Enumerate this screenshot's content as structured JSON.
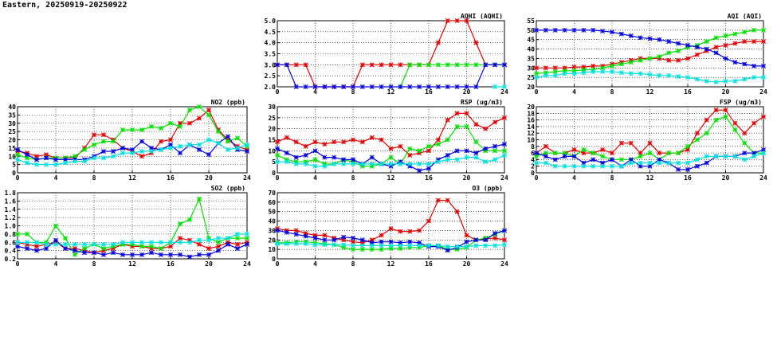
{
  "page": {
    "title": "Eastern, 20250919-20250922"
  },
  "colors": {
    "red": "#e00000",
    "green": "#00e000",
    "blue": "#0000e0",
    "cyan": "#00e0e0"
  },
  "chart_data": [
    {
      "id": "aqhi",
      "type": "line",
      "title": "AQHI (AQHI)",
      "x": [
        0,
        1,
        2,
        3,
        4,
        5,
        6,
        7,
        8,
        9,
        10,
        11,
        12,
        13,
        14,
        15,
        16,
        17,
        18,
        19,
        20,
        21,
        22,
        23,
        24
      ],
      "xlim": [
        0,
        24
      ],
      "xticks": [
        0,
        4,
        8,
        12,
        16,
        20,
        24
      ],
      "ylim": [
        2.0,
        5.0
      ],
      "yticks": [
        "2.0",
        "2.5",
        "3.0",
        "3.5",
        "4.0",
        "4.5",
        "5.0"
      ],
      "grid": true,
      "series": [
        {
          "color": "red",
          "values": [
            3,
            3,
            3,
            3,
            2,
            2,
            2,
            2,
            2,
            3,
            3,
            3,
            3,
            3,
            3,
            3,
            3,
            4,
            5,
            5,
            5,
            4,
            3,
            3,
            3
          ]
        },
        {
          "color": "green",
          "values": [
            null,
            null,
            null,
            null,
            null,
            null,
            null,
            null,
            null,
            null,
            null,
            null,
            null,
            2,
            3,
            3,
            3,
            3,
            3,
            3,
            3,
            3,
            3,
            3,
            3
          ]
        },
        {
          "color": "blue",
          "values": [
            3,
            3,
            2,
            2,
            2,
            2,
            2,
            2,
            2,
            2,
            2,
            2,
            2,
            2,
            2,
            2,
            2,
            2,
            2,
            2,
            2,
            2,
            3,
            3,
            3
          ]
        },
        {
          "color": "cyan",
          "values": [
            null,
            null,
            null,
            null,
            null,
            null,
            null,
            null,
            null,
            null,
            null,
            null,
            null,
            null,
            null,
            null,
            null,
            null,
            null,
            null,
            null,
            null,
            null,
            2,
            2
          ]
        }
      ]
    },
    {
      "id": "aqi",
      "type": "line",
      "title": "AQI (AQI)",
      "x": [
        0,
        1,
        2,
        3,
        4,
        5,
        6,
        7,
        8,
        9,
        10,
        11,
        12,
        13,
        14,
        15,
        16,
        17,
        18,
        19,
        20,
        21,
        22,
        23,
        24
      ],
      "xlim": [
        0,
        24
      ],
      "xticks": [
        0,
        4,
        8,
        12,
        16,
        20,
        24
      ],
      "ylim": [
        20,
        55
      ],
      "yticks": [
        "20",
        "25",
        "30",
        "35",
        "40",
        "45",
        "50",
        "55"
      ],
      "grid": true,
      "series": [
        {
          "color": "red",
          "values": [
            30,
            30,
            30,
            30,
            30.5,
            30.5,
            31,
            31,
            32,
            33,
            34,
            35,
            35,
            35,
            34,
            34,
            35,
            37,
            39,
            41,
            42,
            43,
            44,
            44,
            44
          ]
        },
        {
          "color": "green",
          "values": [
            27,
            27.5,
            28,
            28.5,
            28.5,
            29,
            29,
            30,
            31,
            32,
            33,
            34,
            35,
            36,
            38,
            39,
            41,
            42,
            44,
            46,
            47,
            48,
            49,
            50,
            50
          ]
        },
        {
          "color": "blue",
          "values": [
            50,
            50,
            50,
            50,
            50,
            50,
            50,
            49.5,
            49,
            48,
            47,
            46,
            45.5,
            45,
            44,
            43,
            42,
            41,
            40,
            38,
            35,
            33,
            32,
            31,
            31
          ]
        },
        {
          "color": "cyan",
          "values": [
            25,
            26,
            26,
            27,
            27,
            27.5,
            28,
            28,
            28,
            27.5,
            27,
            27,
            26.5,
            26,
            26,
            25.5,
            25,
            24,
            23,
            22.5,
            23,
            23,
            24,
            25,
            25
          ]
        }
      ]
    },
    {
      "id": "no2",
      "type": "line",
      "title": "NO2 (ppb)",
      "x": [
        0,
        1,
        2,
        3,
        4,
        5,
        6,
        7,
        8,
        9,
        10,
        11,
        12,
        13,
        14,
        15,
        16,
        17,
        18,
        19,
        20,
        21,
        22,
        23,
        24
      ],
      "xlim": [
        0,
        24
      ],
      "xticks": [
        0,
        4,
        8,
        12,
        16,
        20,
        24
      ],
      "ylim": [
        0,
        40
      ],
      "yticks": [
        "0",
        "5",
        "10",
        "15",
        "20",
        "25",
        "30",
        "35",
        "40"
      ],
      "grid": true,
      "series": [
        {
          "color": "red",
          "values": [
            13,
            12,
            10,
            11,
            9,
            9,
            9,
            15,
            23,
            23,
            20,
            15,
            13,
            10,
            12,
            19,
            20,
            30,
            30,
            33,
            38,
            26,
            20,
            16,
            14
          ]
        },
        {
          "color": "green",
          "values": [
            11,
            9,
            8,
            9,
            9,
            9,
            10,
            14,
            17,
            19,
            19,
            26,
            26,
            26,
            28,
            27,
            30,
            28,
            38,
            40,
            35,
            25,
            19,
            21,
            16
          ]
        },
        {
          "color": "blue",
          "values": [
            14,
            11,
            8,
            9,
            8,
            8,
            8,
            8,
            10,
            13,
            13,
            15,
            14,
            19,
            15,
            14,
            17,
            12,
            17,
            14,
            11,
            18,
            22,
            14,
            13
          ]
        },
        {
          "color": "cyan",
          "values": [
            8,
            6,
            5,
            5,
            5,
            6,
            7,
            7,
            9,
            9,
            10,
            12,
            12,
            13,
            13,
            14,
            15,
            16,
            17,
            17,
            20,
            18,
            14,
            15,
            17
          ]
        }
      ]
    },
    {
      "id": "rsp",
      "type": "line",
      "title": "RSP (ug/m3)",
      "x": [
        0,
        1,
        2,
        3,
        4,
        5,
        6,
        7,
        8,
        9,
        10,
        11,
        12,
        13,
        14,
        15,
        16,
        17,
        18,
        19,
        20,
        21,
        22,
        23,
        24
      ],
      "xlim": [
        0,
        24
      ],
      "xticks": [
        0,
        4,
        8,
        12,
        16,
        20,
        24
      ],
      "ylim": [
        0,
        30
      ],
      "yticks": [
        "0",
        "5",
        "10",
        "15",
        "20",
        "25",
        "30"
      ],
      "grid": true,
      "series": [
        {
          "color": "red",
          "values": [
            14,
            16,
            14,
            12,
            14,
            13,
            14,
            14,
            15,
            14,
            16,
            15,
            11,
            12,
            8,
            9,
            10,
            15,
            24,
            27,
            27,
            22,
            20,
            23,
            25
          ]
        },
        {
          "color": "green",
          "values": [
            8,
            6,
            5,
            5,
            6,
            4,
            4,
            6,
            5,
            3,
            3,
            4,
            7,
            4,
            11,
            10,
            12,
            13,
            15,
            21,
            21,
            14,
            10,
            10,
            10
          ]
        },
        {
          "color": "blue",
          "values": [
            11,
            9,
            7,
            8,
            10,
            7,
            7,
            6,
            6,
            4,
            7,
            4,
            3,
            5,
            3,
            1,
            2,
            6,
            8,
            10,
            10,
            9,
            11,
            12,
            13
          ]
        },
        {
          "color": "cyan",
          "values": [
            5,
            5,
            4,
            4,
            3,
            3,
            4,
            4,
            4,
            4,
            4,
            4,
            4,
            4,
            4,
            4,
            4,
            5,
            6,
            6,
            7,
            7,
            5,
            6,
            8
          ]
        }
      ]
    },
    {
      "id": "fsp",
      "type": "line",
      "title": "FSP (ug/m3)",
      "x": [
        0,
        1,
        2,
        3,
        4,
        5,
        6,
        7,
        8,
        9,
        10,
        11,
        12,
        13,
        14,
        15,
        16,
        17,
        18,
        19,
        20,
        21,
        22,
        23,
        24
      ],
      "xlim": [
        0,
        24
      ],
      "xticks": [
        0,
        4,
        8,
        12,
        16,
        20,
        24
      ],
      "ylim": [
        0,
        20
      ],
      "yticks": [
        "0",
        "2",
        "4",
        "6",
        "8",
        "10",
        "12",
        "14",
        "16",
        "18",
        "20"
      ],
      "grid": true,
      "series": [
        {
          "color": "red",
          "values": [
            6,
            8,
            6,
            6,
            7,
            6,
            6,
            7,
            6,
            9,
            9,
            6,
            9,
            6,
            6,
            6,
            7,
            12,
            16,
            19,
            19,
            15,
            12,
            15,
            17
          ]
        },
        {
          "color": "green",
          "values": [
            5,
            6,
            6,
            6,
            5,
            7,
            6,
            5,
            4,
            4,
            4,
            5,
            6,
            4,
            6,
            6,
            8,
            10,
            12,
            16,
            17,
            13,
            9,
            6,
            6
          ]
        },
        {
          "color": "blue",
          "values": [
            6,
            5,
            4,
            5,
            5,
            3,
            4,
            3,
            4,
            2,
            4,
            2,
            2,
            4,
            3,
            1,
            1,
            2,
            3,
            5,
            5,
            5,
            6,
            6,
            7
          ]
        },
        {
          "color": "cyan",
          "values": [
            3,
            3,
            2,
            2,
            2,
            2,
            2,
            2,
            2,
            2,
            3,
            3,
            3,
            3,
            3,
            3,
            3,
            4,
            5,
            5,
            5,
            5,
            4,
            5,
            6
          ]
        }
      ]
    },
    {
      "id": "so2",
      "type": "line",
      "title": "SO2 (ppb)",
      "x": [
        0,
        1,
        2,
        3,
        4,
        5,
        6,
        7,
        8,
        9,
        10,
        11,
        12,
        13,
        14,
        15,
        16,
        17,
        18,
        19,
        20,
        21,
        22,
        23,
        24
      ],
      "xlim": [
        0,
        24
      ],
      "xticks": [
        0,
        4,
        8,
        12,
        16,
        20,
        24
      ],
      "ylim": [
        0.2,
        1.8
      ],
      "yticks": [
        "0.2",
        "0.4",
        "0.6",
        "0.8",
        "1.0",
        "1.2",
        "1.4",
        "1.6",
        "1.8"
      ],
      "grid": true,
      "series": [
        {
          "color": "red",
          "values": [
            0.6,
            0.55,
            0.5,
            0.55,
            0.6,
            0.45,
            0.45,
            0.4,
            0.35,
            0.4,
            0.45,
            0.55,
            0.5,
            0.5,
            0.45,
            0.45,
            0.5,
            0.7,
            0.65,
            0.55,
            0.45,
            0.5,
            0.6,
            0.55,
            0.6
          ]
        },
        {
          "color": "green",
          "values": [
            0.8,
            0.8,
            0.6,
            0.6,
            1.0,
            0.7,
            0.3,
            0.45,
            0.55,
            0.45,
            0.5,
            0.55,
            0.55,
            0.5,
            0.5,
            0.45,
            0.6,
            1.05,
            1.15,
            1.65,
            0.7,
            0.6,
            0.7,
            0.7,
            0.7
          ]
        },
        {
          "color": "blue",
          "values": [
            0.5,
            0.45,
            0.4,
            0.45,
            0.65,
            0.45,
            0.4,
            0.35,
            0.35,
            0.3,
            0.35,
            0.3,
            0.3,
            0.3,
            0.35,
            0.3,
            0.3,
            0.3,
            0.25,
            0.3,
            0.3,
            0.4,
            0.55,
            0.45,
            0.55
          ]
        },
        {
          "color": "cyan",
          "values": [
            0.6,
            0.6,
            0.6,
            0.55,
            0.55,
            0.55,
            0.55,
            0.55,
            0.55,
            0.55,
            0.55,
            0.6,
            0.6,
            0.6,
            0.6,
            0.6,
            0.6,
            0.6,
            0.6,
            0.65,
            0.65,
            0.7,
            0.7,
            0.8,
            0.8
          ]
        }
      ]
    },
    {
      "id": "o3",
      "type": "line",
      "title": "O3 (ppb)",
      "x": [
        0,
        1,
        2,
        3,
        4,
        5,
        6,
        7,
        8,
        9,
        10,
        11,
        12,
        13,
        14,
        15,
        16,
        17,
        18,
        19,
        20,
        21,
        22,
        23,
        24
      ],
      "xlim": [
        0,
        24
      ],
      "xticks": [
        0,
        4,
        8,
        12,
        16,
        20,
        24
      ],
      "ylim": [
        0,
        70
      ],
      "yticks": [
        "0",
        "10",
        "20",
        "30",
        "40",
        "50",
        "60",
        "70"
      ],
      "grid": true,
      "series": [
        {
          "color": "red",
          "values": [
            32,
            30,
            30,
            27,
            25,
            25,
            22,
            20,
            18,
            17,
            20,
            25,
            32,
            29,
            29,
            30,
            40,
            62,
            62,
            50,
            25,
            20,
            21,
            22,
            20
          ]
        },
        {
          "color": "green",
          "values": [
            17,
            17,
            18,
            18,
            17,
            16,
            15,
            12,
            10,
            10,
            10,
            10,
            11,
            11,
            12,
            12,
            14,
            14,
            10,
            10,
            12,
            20,
            22,
            26,
            30
          ]
        },
        {
          "color": "blue",
          "values": [
            30,
            28,
            26,
            24,
            22,
            20,
            20,
            23,
            22,
            20,
            17,
            18,
            18,
            17,
            18,
            17,
            13,
            13,
            9,
            12,
            18,
            20,
            20,
            27,
            30
          ]
        },
        {
          "color": "cyan",
          "values": [
            16,
            16,
            16,
            16,
            15,
            15,
            15,
            15,
            14,
            14,
            14,
            14,
            14,
            14,
            14,
            14,
            14,
            14,
            13,
            13,
            13,
            14,
            14,
            14,
            15
          ]
        }
      ]
    }
  ]
}
